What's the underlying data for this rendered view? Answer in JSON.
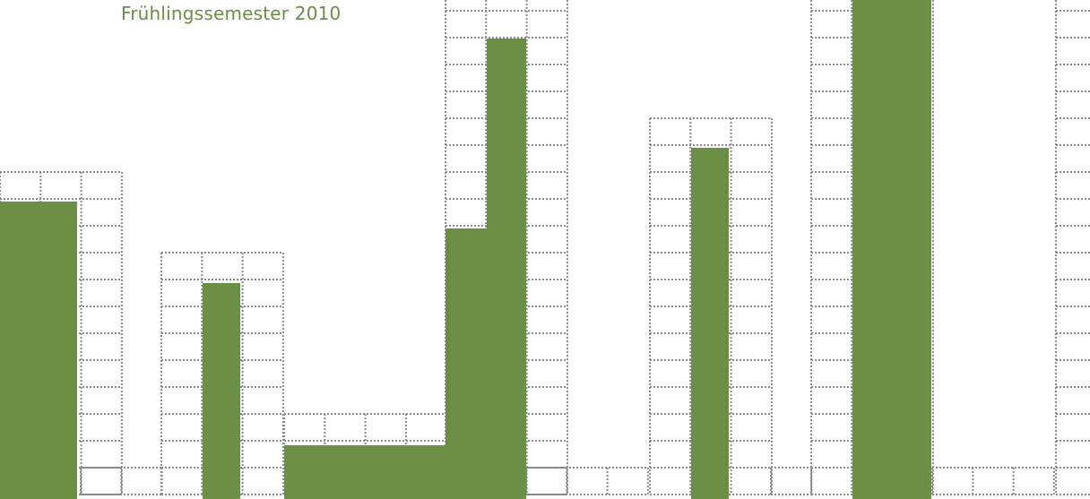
{
  "caption": {
    "text": "Frühlingssemester 2010"
  },
  "colors": {
    "accent": "#6a8f45",
    "grid": "#8a8a8a",
    "background": "#ffffff"
  },
  "graphic": {
    "description_free": true,
    "columns": [
      {
        "id": 1,
        "grid_cells": 12,
        "green_cells": 11
      },
      {
        "id": 2,
        "grid_cells": 1,
        "green_cells": 0
      },
      {
        "id": 3,
        "grid_cells": 9,
        "green_cells": 8
      },
      {
        "id": 4,
        "grid_cells": 3,
        "green_cells": 2
      },
      {
        "id": 5,
        "grid_cells": 19,
        "green_cells": 17
      },
      {
        "id": 6,
        "grid_cells": 1,
        "green_cells": 0
      },
      {
        "id": 7,
        "grid_cells": 14,
        "green_cells": 13
      },
      {
        "id": 8,
        "grid_cells": 1,
        "green_cells": 0
      },
      {
        "id": 9,
        "grid_cells": 19,
        "green_cells": 19
      },
      {
        "id": 10,
        "grid_cells": 1,
        "green_cells": 0
      },
      {
        "id": 11,
        "grid_cells": 19,
        "green_cells": 0
      }
    ]
  }
}
